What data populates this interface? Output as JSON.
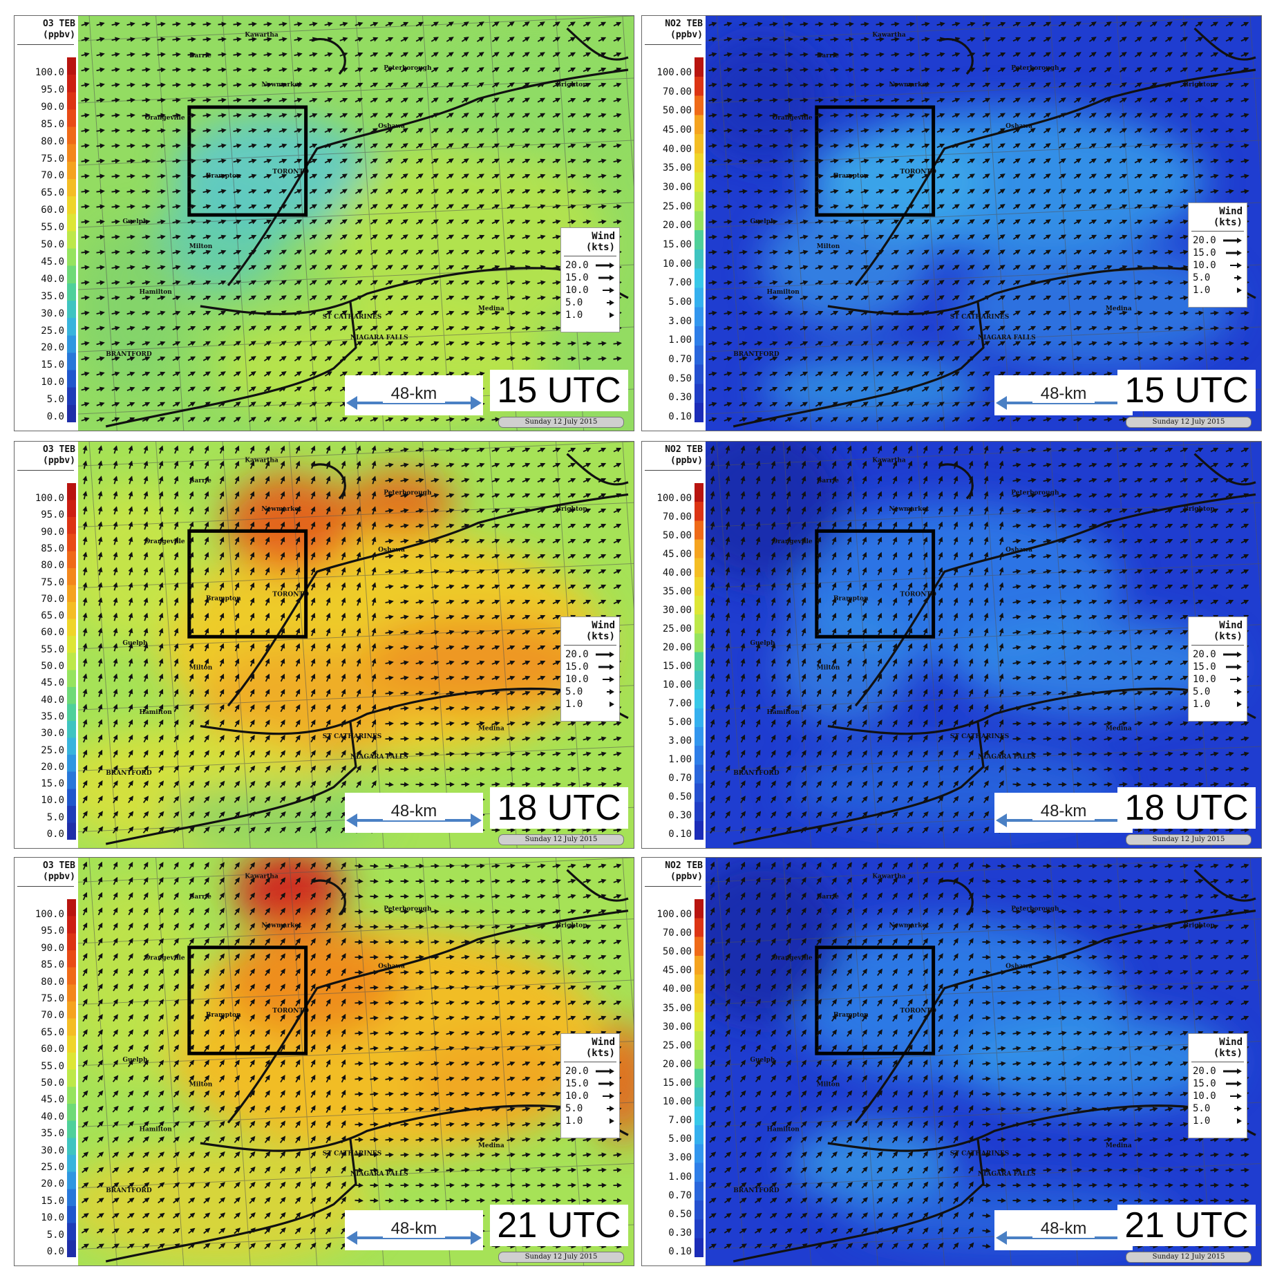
{
  "colorbars": {
    "o3": {
      "title_line1": "O3 TEB",
      "title_line2": "(ppbv)",
      "labels": [
        "100.0",
        "95.0",
        "90.0",
        "85.0",
        "80.0",
        "75.0",
        "70.0",
        "65.0",
        "60.0",
        "55.0",
        "50.0",
        "45.0",
        "40.0",
        "35.0",
        "30.0",
        "25.0",
        "20.0",
        "15.0",
        "10.0",
        "5.0",
        "0.0"
      ]
    },
    "no2": {
      "title_line1": "NO2 TEB",
      "title_line2": "(ppbv)",
      "labels": [
        "100.00",
        "70.00",
        "50.00",
        "45.00",
        "40.00",
        "35.00",
        "30.00",
        "25.00",
        "20.00",
        "15.00",
        "10.00",
        "7.00",
        "5.00",
        "3.00",
        "1.00",
        "0.70",
        "0.50",
        "0.30",
        "0.10"
      ]
    }
  },
  "colors": {
    "o3_low": "#1e2ea8",
    "o3_mid": "#7ad35e",
    "o3_high": "#b8140f",
    "no2_low": "#1b2cb8",
    "no2_high": "#b8140f"
  },
  "wind_legend": {
    "title_line1": "Wind",
    "title_line2": "(kts)",
    "rows": [
      "20.0",
      "15.0",
      "10.0",
      "5.0",
      "1.0"
    ]
  },
  "scale_label": "48-km",
  "date_label": "Sunday 12 July 2015",
  "panels": [
    {
      "utc": "15 UTC"
    },
    {
      "utc": "15 UTC"
    },
    {
      "utc": "18 UTC"
    },
    {
      "utc": "18 UTC"
    },
    {
      "utc": "21 UTC"
    },
    {
      "utc": "21 UTC"
    }
  ],
  "place_names": {
    "toronto": "TORONTO",
    "st_catharines": "ST CATHARINES",
    "niagara_falls": "NIAGARA FALLS",
    "brantford": "BRANTFORD",
    "oshawa": "Oshawa",
    "milton": "Milton",
    "brampton": "Brampton",
    "newmarket": "Newmarket",
    "peterborough": "Peterborough",
    "kawartha": "Kawartha",
    "barrie": "Barrie",
    "orangeville": "Orangeville",
    "guelph": "Guelph",
    "hamilton": "Hamilton",
    "medina": "Medina",
    "brighton": "Brighton"
  }
}
